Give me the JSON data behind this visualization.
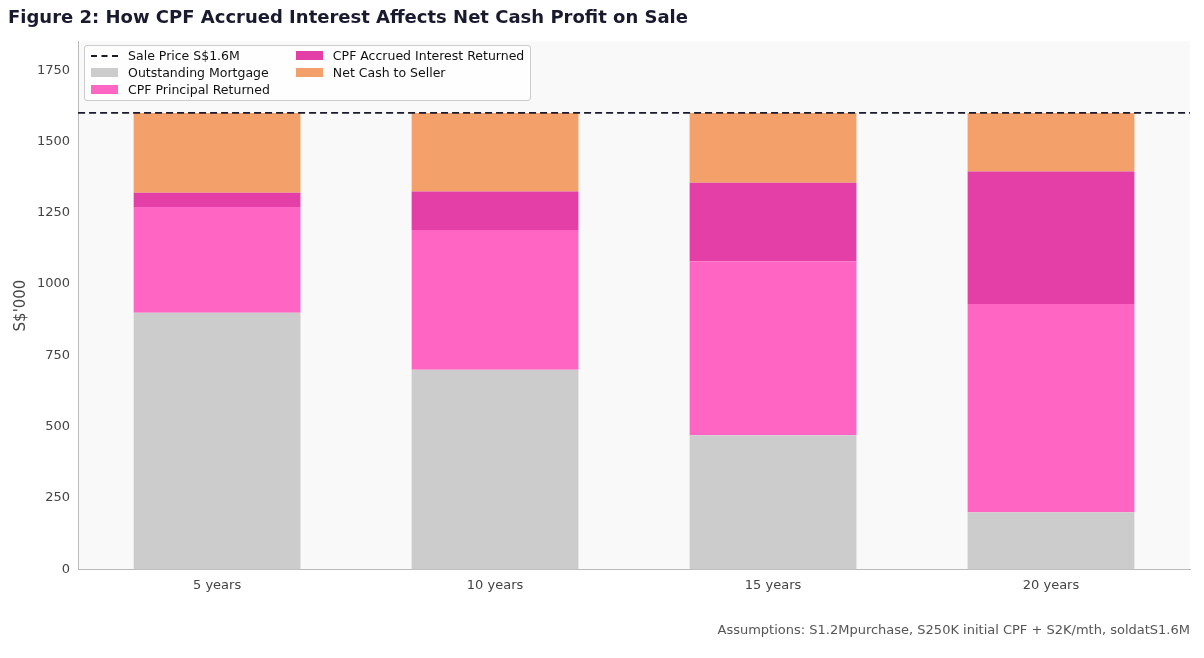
{
  "chart_data": {
    "type": "bar",
    "title": "Figure 2: How CPF Accrued Interest Affects Net Cash Profit on Sale",
    "ylabel": "S$'000",
    "categories": [
      "5 years",
      "10 years",
      "15 years",
      "20 years"
    ],
    "stacked": true,
    "series": [
      {
        "name": "Outstanding Mortgage",
        "color": "#cccccc",
        "values": [
          900,
          700,
          470,
          200
        ]
      },
      {
        "name": "CPF Principal Returned",
        "color": "#ff66c4",
        "values": [
          370,
          490,
          610,
          730
        ]
      },
      {
        "name": "CPF Accrued Interest Returned",
        "color": "#e33fa6",
        "values": [
          50,
          135,
          275,
          465
        ]
      },
      {
        "name": "Net Cash to Seller",
        "color": "#f4a06a",
        "values": [
          280,
          275,
          245,
          205
        ]
      }
    ],
    "ylim": [
      0,
      1850
    ],
    "yticks": [
      0,
      250,
      500,
      750,
      1000,
      1250,
      1500,
      1750
    ],
    "ref_lines": [
      {
        "axis": "y",
        "value": 1600,
        "label": "Sale Price S$1.6M",
        "color": "#1a1a2e",
        "line_style": "dashed"
      }
    ],
    "legend": "top left",
    "annotations": [
      "Assumptions: S1.2Mpurchase, S250K initial CPF + S2K/mth, soldatS1.6M"
    ]
  }
}
